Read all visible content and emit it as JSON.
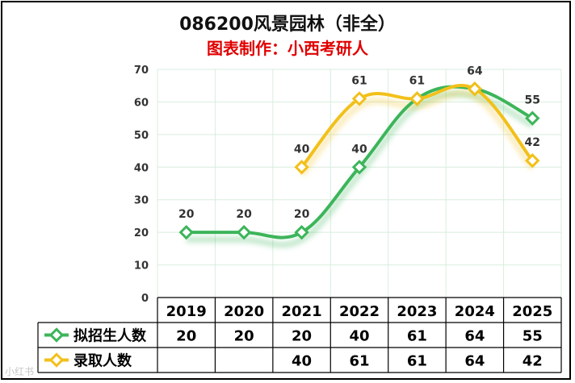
{
  "title": "086200风景园林（非全）",
  "subtitle": "图表制作：小西考研人",
  "watermark": "小红书",
  "chart_data": {
    "type": "line",
    "categories": [
      "2019",
      "2020",
      "2021",
      "2022",
      "2023",
      "2024",
      "2025"
    ],
    "ylim": [
      0,
      70
    ],
    "yticks": [
      0,
      10,
      20,
      30,
      40,
      50,
      60,
      70
    ],
    "grid": true,
    "legend": "table-left",
    "series": [
      {
        "name": "拟招生人数",
        "color": "#3cb55a",
        "values": [
          20,
          20,
          20,
          40,
          61,
          64,
          55
        ]
      },
      {
        "name": "录取人数",
        "color": "#f2c01a",
        "values": [
          null,
          null,
          40,
          61,
          61,
          64,
          42
        ]
      }
    ]
  }
}
